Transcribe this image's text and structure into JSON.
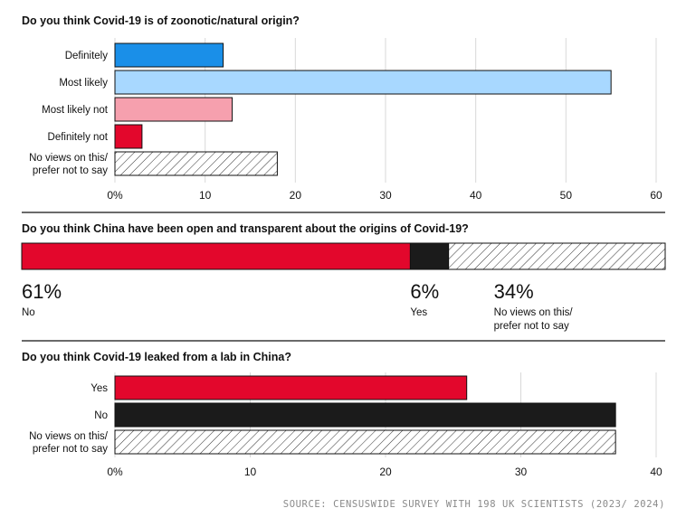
{
  "colors": {
    "definitely_blue": "#1a8fe8",
    "light_blue": "#a8d8ff",
    "pink": "#f6a0ae",
    "red": "#e3072c",
    "black": "#1b1b1b",
    "hatch": "#333333",
    "gridline": "#d9d9d9"
  },
  "source": "SOURCE: CENSUSWIDE SURVEY WITH 198 UK SCIENTISTS (2023/ 2024)",
  "chart_data": [
    {
      "type": "bar",
      "orientation": "horizontal",
      "title": "Do you think Covid-19 is of zoonotic/natural origin?",
      "categories": [
        "Definitely",
        "Most likely",
        "Most likely not",
        "Definitely not",
        "No views on this/ prefer not to say"
      ],
      "category_lines": [
        [
          "Definitely"
        ],
        [
          "Most likely"
        ],
        [
          "Most likely not"
        ],
        [
          "Definitely not"
        ],
        [
          "No views on this/",
          "prefer not to say"
        ]
      ],
      "values": [
        12,
        55,
        13,
        3,
        18
      ],
      "bar_colors": [
        "#1a8fe8",
        "#a8d8ff",
        "#f6a0ae",
        "#e3072c",
        "hatch"
      ],
      "xlim": [
        0,
        60
      ],
      "ticks": [
        0,
        10,
        20,
        30,
        40,
        50,
        60
      ],
      "tick_labels": [
        "0%",
        "10",
        "20",
        "30",
        "40",
        "50",
        "60"
      ],
      "grid": true
    },
    {
      "type": "bar",
      "orientation": "stacked-horizontal",
      "title": "Do you think China have been open and transparent about the origins of Covid-19?",
      "segments": [
        {
          "label": "No",
          "label_lines": [
            "No"
          ],
          "value": 61,
          "display": "61%",
          "color": "#e3072c"
        },
        {
          "label": "Yes",
          "label_lines": [
            "Yes"
          ],
          "value": 6,
          "display": "6%",
          "color": "#1b1b1b"
        },
        {
          "label": "No views on this/ prefer not to say",
          "label_lines": [
            "No views on this/",
            "prefer not to say"
          ],
          "value": 34,
          "display": "34%",
          "color": "hatch"
        }
      ]
    },
    {
      "type": "bar",
      "orientation": "horizontal",
      "title": "Do you think Covid-19 leaked from a lab in China?",
      "categories": [
        "Yes",
        "No",
        "No views on this/ prefer not to say"
      ],
      "category_lines": [
        [
          "Yes"
        ],
        [
          "No"
        ],
        [
          "No views on this/",
          "prefer not to say"
        ]
      ],
      "values": [
        26,
        37,
        37
      ],
      "bar_colors": [
        "#e3072c",
        "#1b1b1b",
        "hatch"
      ],
      "xlim": [
        0,
        40
      ],
      "ticks": [
        0,
        10,
        20,
        30,
        40
      ],
      "tick_labels": [
        "0%",
        "10",
        "20",
        "30",
        "40"
      ],
      "grid": true
    }
  ]
}
